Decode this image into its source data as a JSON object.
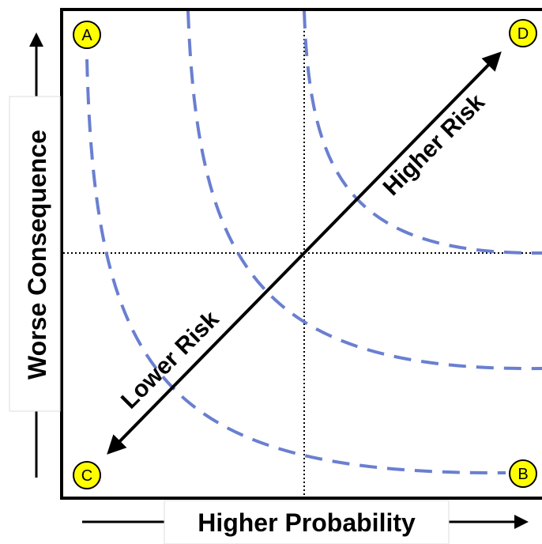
{
  "diagram": {
    "x_axis_label": "Higher Probability",
    "y_axis_label": "Worse Consequence",
    "diagonal": {
      "upper_label": "Higher Risk",
      "lower_label": "Lower Risk"
    },
    "corners": {
      "top_left": "A",
      "top_right": "D",
      "bottom_left": "C",
      "bottom_right": "B"
    },
    "colors": {
      "frame": "#000000",
      "iso_risk_curves": "#6A7FD0",
      "corner_marker_fill": "#FFFF00"
    }
  }
}
